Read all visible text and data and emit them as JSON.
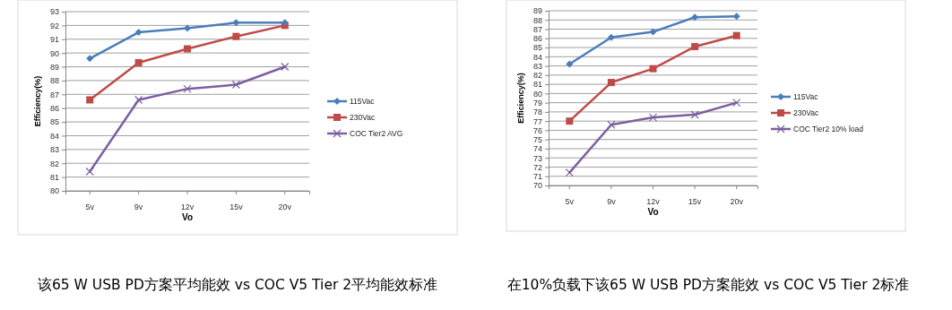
{
  "chart_data": [
    {
      "type": "line",
      "xlabel": "Vo",
      "ylabel": "Efficiency(%)",
      "categories": [
        "5v",
        "9v",
        "12v",
        "15v",
        "20v"
      ],
      "ylim": [
        80,
        93
      ],
      "yticks": [
        80,
        81,
        82,
        83,
        84,
        85,
        86,
        87,
        88,
        89,
        90,
        91,
        92,
        93
      ],
      "grid": "y",
      "legend": "right",
      "annotations": [
        "该65 W USB PD方案平均能效 vs COC V5 Tier 2平均能效标准"
      ],
      "series": [
        {
          "name": "115Vac",
          "color": "#4a7ebb",
          "marker": "diamond",
          "values": [
            89.6,
            91.5,
            91.8,
            92.2,
            92.2
          ]
        },
        {
          "name": "230Vac",
          "color": "#be4b48",
          "marker": "square",
          "values": [
            86.6,
            89.3,
            90.3,
            91.2,
            92.0
          ]
        },
        {
          "name": "COC Tier2 AVG",
          "color": "#7d5fa0",
          "marker": "cross",
          "values": [
            81.4,
            86.6,
            87.4,
            87.7,
            89.0
          ]
        }
      ]
    },
    {
      "type": "line",
      "xlabel": "Vo",
      "ylabel": "Efficiency(%)",
      "categories": [
        "5v",
        "9v",
        "12v",
        "15v",
        "20v"
      ],
      "ylim": [
        70,
        89
      ],
      "yticks": [
        70,
        71,
        72,
        73,
        74,
        75,
        76,
        77,
        78,
        79,
        80,
        81,
        82,
        83,
        84,
        85,
        86,
        87,
        88,
        89
      ],
      "grid": "y",
      "legend": "right",
      "annotations": [
        "在10%负载下该65 W USB PD方案能效 vs COC V5 Tier 2标准"
      ],
      "series": [
        {
          "name": "115Vac",
          "color": "#4a7ebb",
          "marker": "diamond",
          "values": [
            83.2,
            86.1,
            86.7,
            88.3,
            88.4
          ]
        },
        {
          "name": "230Vac",
          "color": "#be4b48",
          "marker": "square",
          "values": [
            77.0,
            81.2,
            82.7,
            85.1,
            86.3
          ]
        },
        {
          "name": "COC Tier2 10% load",
          "color": "#7d5fa0",
          "marker": "cross",
          "values": [
            71.4,
            76.6,
            77.4,
            77.7,
            79.0
          ]
        }
      ]
    }
  ]
}
